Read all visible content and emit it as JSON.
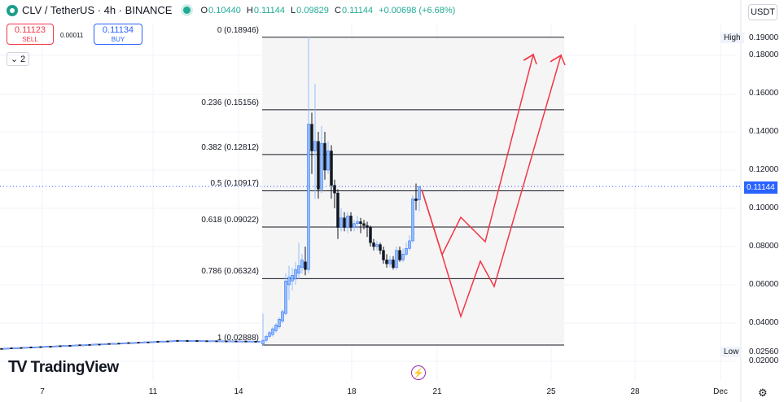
{
  "header": {
    "symbol": "CLV / TetherUS · 4h · BINANCE",
    "open_label": "O",
    "open": "0.10440",
    "high_label": "H",
    "high": "0.11144",
    "low_label": "L",
    "low": "0.09829",
    "close_label": "C",
    "close": "0.11144",
    "change": "+0.00698 (+6.68%)"
  },
  "trade": {
    "sell_price": "0.11123",
    "sell_label": "SELL",
    "spread": "0.00011",
    "buy_price": "0.11134",
    "buy_label": "BUY"
  },
  "indicators_toggle": "2",
  "currency": "USDT",
  "price_axis": {
    "ticks": [
      "0.18000",
      "0.16000",
      "0.14000",
      "0.12000",
      "0.10000",
      "0.08000",
      "0.06000",
      "0.04000",
      "0.02000"
    ],
    "high_label": "High",
    "high_value": "0.19000",
    "low_label": "Low",
    "low_value": "0.02560",
    "current_value": "0.11144"
  },
  "time_axis": [
    "7",
    "11",
    "14",
    "18",
    "21",
    "25",
    "28",
    "Dec"
  ],
  "fib_levels": [
    {
      "label": "0 (0.18946)",
      "price": 0.18946
    },
    {
      "label": "0.236 (0.15156)",
      "price": 0.15156
    },
    {
      "label": "0.382 (0.12812)",
      "price": 0.12812
    },
    {
      "label": "0.5 (0.10917)",
      "price": 0.10917
    },
    {
      "label": "0.618 (0.09022)",
      "price": 0.09022
    },
    {
      "label": "0.786 (0.06324)",
      "price": 0.06324
    },
    {
      "label": "1 (0.02888)",
      "price": 0.02888
    }
  ],
  "logo_text": "TradingView",
  "colors": {
    "up": "#2962ff",
    "up_fill": "#90bff9",
    "down": "#131722",
    "projection": "#f23645",
    "accent": "#2962ff"
  },
  "chart_data": {
    "type": "candlestick",
    "price_range": [
      0.02,
      0.19
    ],
    "candles": [
      {
        "t": 0,
        "o": 0.1044,
        "h": 0.11144,
        "l": 0.09829,
        "c": 0.11144
      }
    ],
    "projection_paths": [
      [
        [
          0,
          0.109
        ],
        [
          1,
          0.075
        ],
        [
          2,
          0.096
        ],
        [
          3,
          0.083
        ],
        [
          4,
          0.18
        ],
        [
          4.2,
          0.183
        ]
      ],
      [
        [
          0,
          0.075
        ],
        [
          1,
          0.043
        ],
        [
          2,
          0.073
        ],
        [
          3,
          0.06
        ],
        [
          4,
          0.18
        ],
        [
          4.2,
          0.183
        ]
      ]
    ]
  }
}
